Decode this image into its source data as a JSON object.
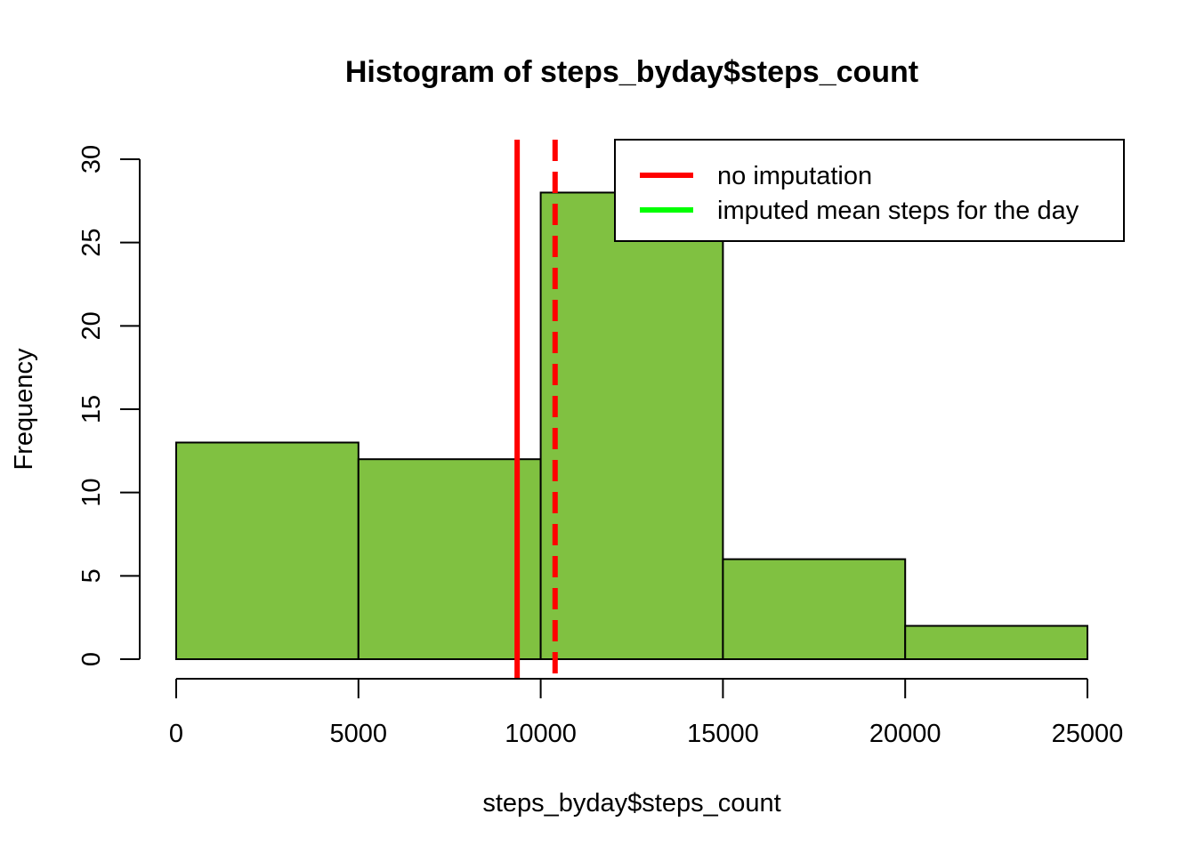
{
  "chart_data": {
    "type": "bar",
    "title": "Histogram of steps_byday$steps_count",
    "xlabel": "steps_byday$steps_count",
    "ylabel": "Frequency",
    "bins": [
      {
        "from": 0,
        "to": 5000,
        "count": 13
      },
      {
        "from": 5000,
        "to": 10000,
        "count": 12
      },
      {
        "from": 10000,
        "to": 15000,
        "count": 28
      },
      {
        "from": 15000,
        "to": 20000,
        "count": 6
      },
      {
        "from": 20000,
        "to": 25000,
        "count": 2
      }
    ],
    "xticks": [
      0,
      5000,
      10000,
      15000,
      20000,
      25000
    ],
    "yticks": [
      0,
      5,
      10,
      15,
      20,
      25,
      30
    ],
    "xlim": [
      0,
      25000
    ],
    "ylim": [
      0,
      30
    ],
    "bar_color": "#80C141",
    "vlines": [
      {
        "x": 9354,
        "color": "#FF0000",
        "style": "solid"
      },
      {
        "x": 10395,
        "color": "#FF0000",
        "style": "dashed"
      }
    ],
    "legend": {
      "position": "top-right",
      "items": [
        {
          "label": "no imputation",
          "color": "#FF0000"
        },
        {
          "label": "imputed mean steps for the day",
          "color": "#00FF00"
        }
      ]
    },
    "grid": false
  }
}
